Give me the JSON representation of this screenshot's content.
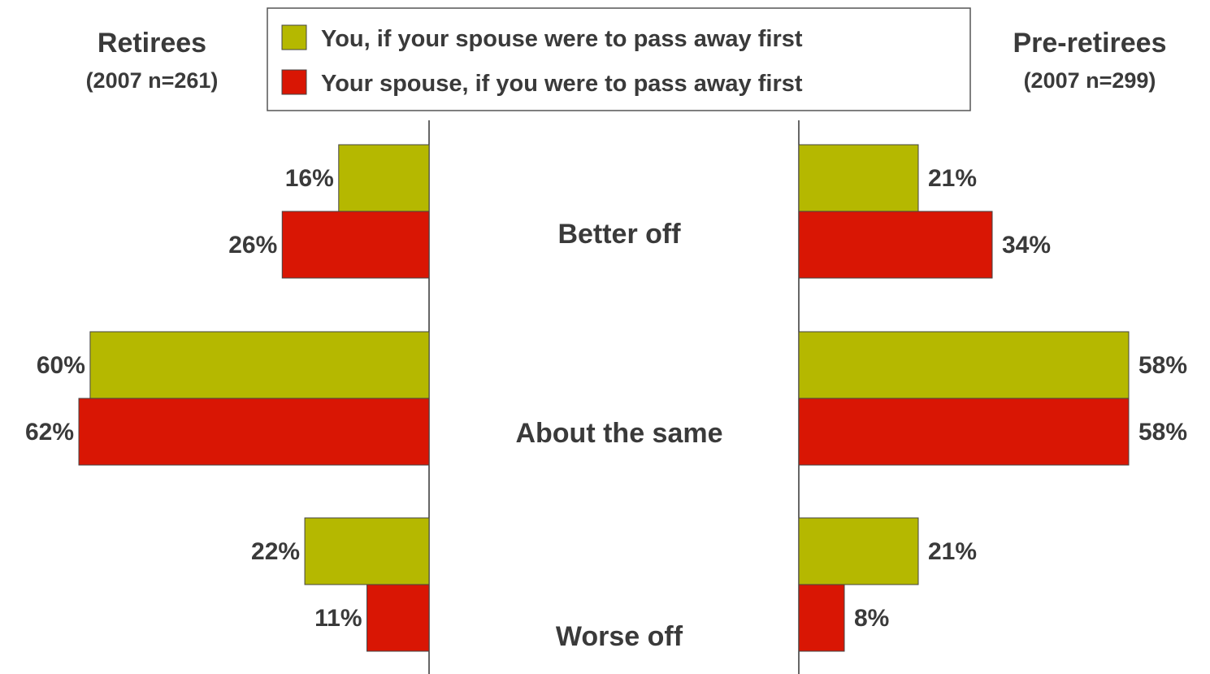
{
  "chart_data": [
    {
      "type": "bar",
      "title": "Retirees",
      "subtitle": "(2007 n=261)",
      "categories": [
        "Better off",
        "About the same",
        "Worse off"
      ],
      "series": [
        {
          "name": "You, if your spouse were to pass away first",
          "values": [
            16,
            60,
            22
          ],
          "labels": [
            "16%",
            "60%",
            "22%"
          ]
        },
        {
          "name": "Your spouse, if you were to pass away first",
          "values": [
            26,
            62,
            11
          ],
          "labels": [
            "26%",
            "62%",
            "11%"
          ]
        }
      ],
      "orientation": "horizontal",
      "direction": "leftward",
      "xlim": [
        0,
        62
      ]
    },
    {
      "type": "bar",
      "title": "Pre-retirees",
      "subtitle": "(2007 n=299)",
      "categories": [
        "Better off",
        "About the same",
        "Worse off"
      ],
      "series": [
        {
          "name": "You, if your spouse were to pass away first",
          "values": [
            21,
            58,
            21
          ],
          "labels": [
            "21%",
            "58%",
            "21%"
          ]
        },
        {
          "name": "Your spouse, if you were to pass away first",
          "values": [
            34,
            58,
            8
          ],
          "labels": [
            "34%",
            "58%",
            "8%"
          ]
        }
      ],
      "orientation": "horizontal",
      "direction": "rightward",
      "xlim": [
        0,
        58
      ]
    }
  ],
  "legend": {
    "position": "top-center",
    "items": [
      {
        "label": "You, if your spouse were to pass away first",
        "color": "#b5b800"
      },
      {
        "label": "Your spouse, if you were to pass away first",
        "color": "#d91604"
      }
    ]
  },
  "colors": {
    "series1": "#b5b800",
    "series2": "#d91604",
    "text": "#3a3a3a",
    "axis": "#333333"
  }
}
